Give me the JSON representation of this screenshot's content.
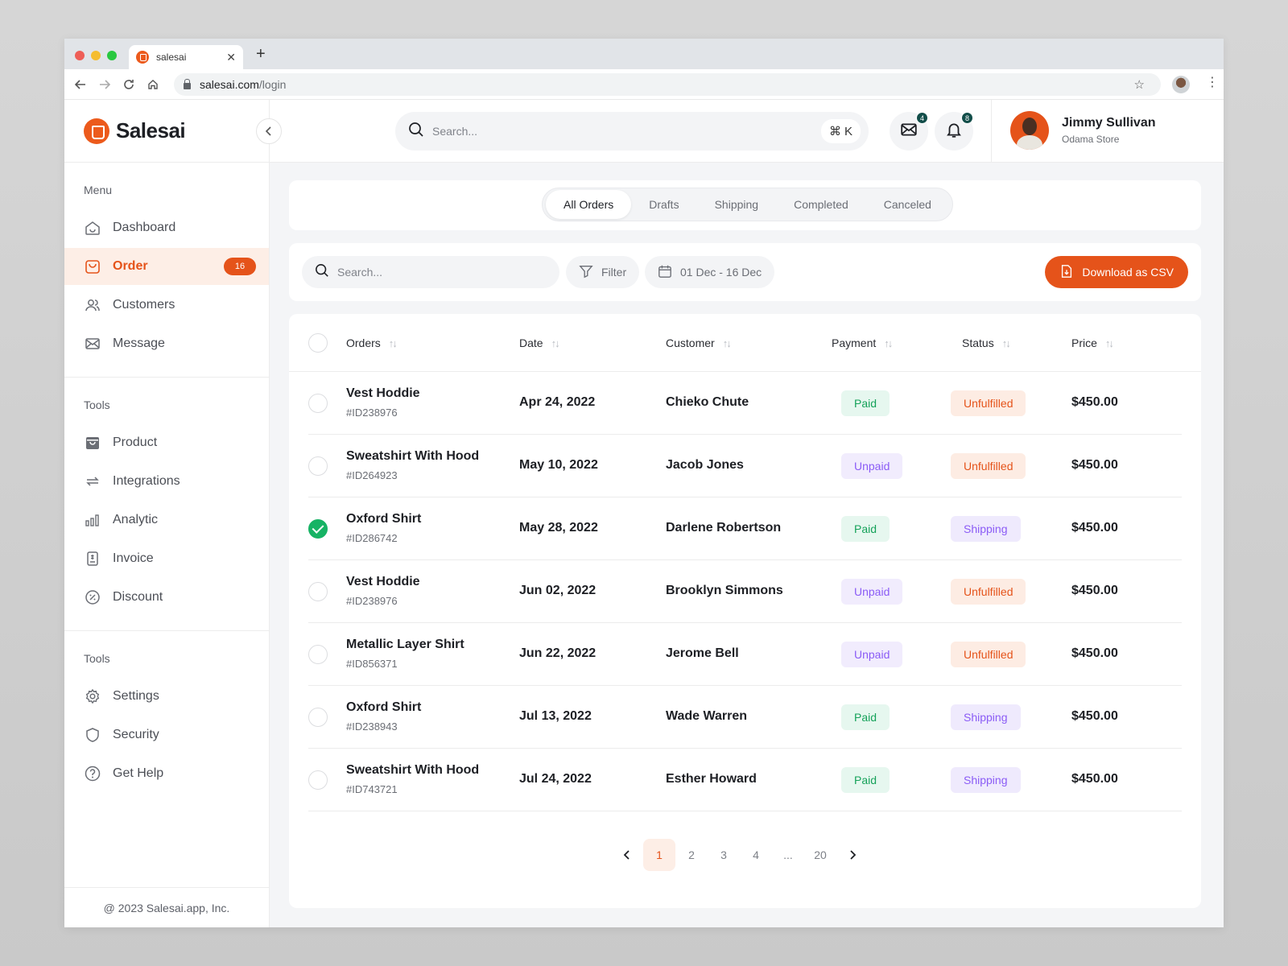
{
  "browser": {
    "tab_title": "salesai",
    "url_host": "salesai.com",
    "url_path": "/login"
  },
  "brand": {
    "name": "Salesai",
    "accent": "#e5531a"
  },
  "sidebar": {
    "sections": [
      {
        "title": "Menu",
        "items": [
          {
            "label": "Dashboard",
            "icon": "home-icon"
          },
          {
            "label": "Order",
            "icon": "bag-icon",
            "active": true,
            "badge": "16"
          },
          {
            "label": "Customers",
            "icon": "users-icon"
          },
          {
            "label": "Message",
            "icon": "mail-icon"
          }
        ]
      },
      {
        "title": "Tools",
        "items": [
          {
            "label": "Product",
            "icon": "box-icon"
          },
          {
            "label": "Integrations",
            "icon": "sync-icon"
          },
          {
            "label": "Analytic",
            "icon": "chart-icon"
          },
          {
            "label": "Invoice",
            "icon": "invoice-icon"
          },
          {
            "label": "Discount",
            "icon": "discount-icon"
          }
        ]
      },
      {
        "title": "Tools",
        "items": [
          {
            "label": "Settings",
            "icon": "gear-icon"
          },
          {
            "label": "Security",
            "icon": "shield-icon"
          },
          {
            "label": "Get Help",
            "icon": "help-icon"
          }
        ]
      }
    ],
    "footer": "@ 2023 Salesai.app, Inc."
  },
  "topbar": {
    "search_placeholder": "Search...",
    "shortcut_symbol": "⌘",
    "shortcut_key": "K",
    "mail_count": "4",
    "notif_count": "8",
    "user": {
      "name": "Jimmy Sullivan",
      "store": "Odama Store"
    }
  },
  "tabs": [
    {
      "label": "All Orders",
      "active": true
    },
    {
      "label": "Drafts"
    },
    {
      "label": "Shipping"
    },
    {
      "label": "Completed"
    },
    {
      "label": "Canceled"
    }
  ],
  "filters": {
    "search_placeholder": "Search...",
    "filter_label": "Filter",
    "date_range": "01 Dec - 16 Dec",
    "download_label": "Download as CSV"
  },
  "table": {
    "columns": [
      "Orders",
      "Date",
      "Customer",
      "Payment",
      "Status",
      "Price"
    ],
    "rows": [
      {
        "name": "Vest Hoddie",
        "id": "#ID238976",
        "date": "Apr 24, 2022",
        "customer": "Chieko Chute",
        "payment": "Paid",
        "status": "Unfulfilled",
        "price": "$450.00",
        "checked": false
      },
      {
        "name": "Sweatshirt With Hood",
        "id": "#ID264923",
        "date": "May 10, 2022",
        "customer": "Jacob Jones",
        "payment": "Unpaid",
        "status": "Unfulfilled",
        "price": "$450.00",
        "checked": false
      },
      {
        "name": "Oxford Shirt",
        "id": "#ID286742",
        "date": "May 28, 2022",
        "customer": "Darlene Robertson",
        "payment": "Paid",
        "status": "Shipping",
        "price": "$450.00",
        "checked": true
      },
      {
        "name": "Vest Hoddie",
        "id": "#ID238976",
        "date": "Jun 02, 2022",
        "customer": "Brooklyn Simmons",
        "payment": "Unpaid",
        "status": "Unfulfilled",
        "price": "$450.00",
        "checked": false
      },
      {
        "name": "Metallic Layer Shirt",
        "id": "#ID856371",
        "date": "Jun 22, 2022",
        "customer": "Jerome Bell",
        "payment": "Unpaid",
        "status": "Unfulfilled",
        "price": "$450.00",
        "checked": false
      },
      {
        "name": "Oxford Shirt",
        "id": "#ID238943",
        "date": "Jul 13, 2022",
        "customer": "Wade Warren",
        "payment": "Paid",
        "status": "Shipping",
        "price": "$450.00",
        "checked": false
      },
      {
        "name": "Sweatshirt With Hood",
        "id": "#ID743721",
        "date": "Jul 24, 2022",
        "customer": "Esther Howard",
        "payment": "Paid",
        "status": "Shipping",
        "price": "$450.00",
        "checked": false
      }
    ]
  },
  "pagination": {
    "pages": [
      "1",
      "2",
      "3",
      "4",
      "...",
      "20"
    ],
    "current": "1"
  }
}
